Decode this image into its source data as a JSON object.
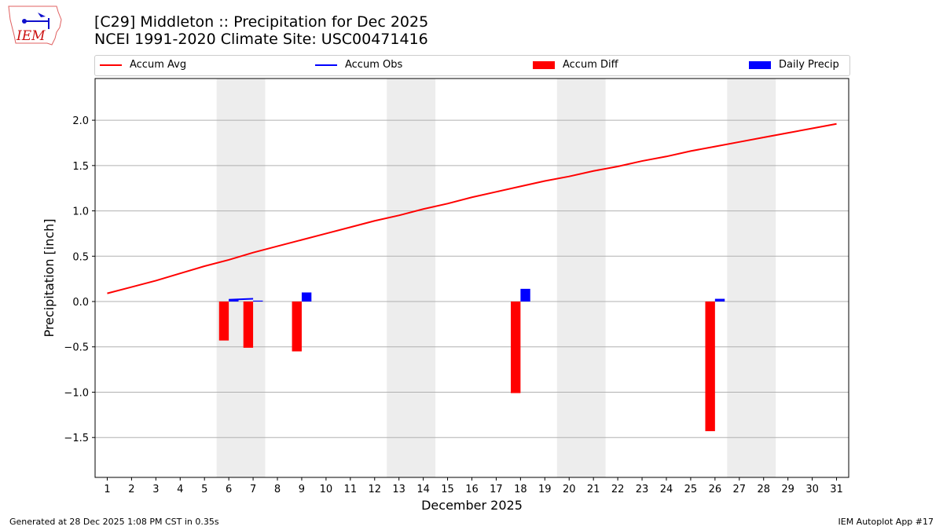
{
  "title_line1": "[C29] Middleton :: Precipitation for Dec 2025",
  "title_line2": "NCEI 1991-2020 Climate Site: USC00471416",
  "logo_text": "IEM",
  "footer_left": "Generated at 28 Dec 2025 1:08 PM CST in 0.35s",
  "footer_right": "IEM Autoplot App #17",
  "chart_data": {
    "type": "bar",
    "xlabel": "December 2025",
    "ylabel": "Precipitation [inch]",
    "xlim": [
      0.5,
      31.5
    ],
    "ylim": [
      -1.94,
      2.46
    ],
    "yticks": [
      -1.5,
      -1.0,
      -0.5,
      0.0,
      0.5,
      1.0,
      1.5,
      2.0
    ],
    "ytick_labels": [
      "−1.5",
      "−1.0",
      "−0.5",
      "0.0",
      "0.5",
      "1.0",
      "1.5",
      "2.0"
    ],
    "x": [
      1,
      2,
      3,
      4,
      5,
      6,
      7,
      8,
      9,
      10,
      11,
      12,
      13,
      14,
      15,
      16,
      17,
      18,
      19,
      20,
      21,
      22,
      23,
      24,
      25,
      26,
      27,
      28,
      29,
      30,
      31
    ],
    "grid": "y",
    "legend_position": "top",
    "weekend_shading": [
      [
        5.5,
        7.5
      ],
      [
        12.5,
        14.5
      ],
      [
        19.5,
        21.5
      ],
      [
        26.5,
        28.5
      ]
    ],
    "series": [
      {
        "name": "Accum Avg",
        "kind": "line",
        "color": "#ff0000",
        "values": [
          0.09,
          0.16,
          0.23,
          0.31,
          0.39,
          0.46,
          0.54,
          0.61,
          0.68,
          0.75,
          0.82,
          0.89,
          0.95,
          1.02,
          1.08,
          1.15,
          1.21,
          1.27,
          1.33,
          1.38,
          1.44,
          1.49,
          1.55,
          1.6,
          1.66,
          1.71,
          1.76,
          1.81,
          1.86,
          1.91,
          1.96
        ]
      },
      {
        "name": "Accum Obs",
        "kind": "line",
        "color": "#0000ff",
        "x": [
          6,
          7
        ],
        "values": [
          0.02,
          0.03
        ]
      },
      {
        "name": "Accum Diff",
        "kind": "bar",
        "color": "#ff0000",
        "x": [
          6,
          7,
          9,
          18,
          26
        ],
        "values": [
          -0.43,
          -0.51,
          -0.55,
          -1.01,
          -1.43
        ]
      },
      {
        "name": "Daily Precip",
        "kind": "bar",
        "color": "#0000ff",
        "x": [
          6,
          7,
          9,
          18,
          26
        ],
        "values": [
          0.02,
          0.01,
          0.1,
          0.14,
          0.03
        ]
      }
    ]
  }
}
